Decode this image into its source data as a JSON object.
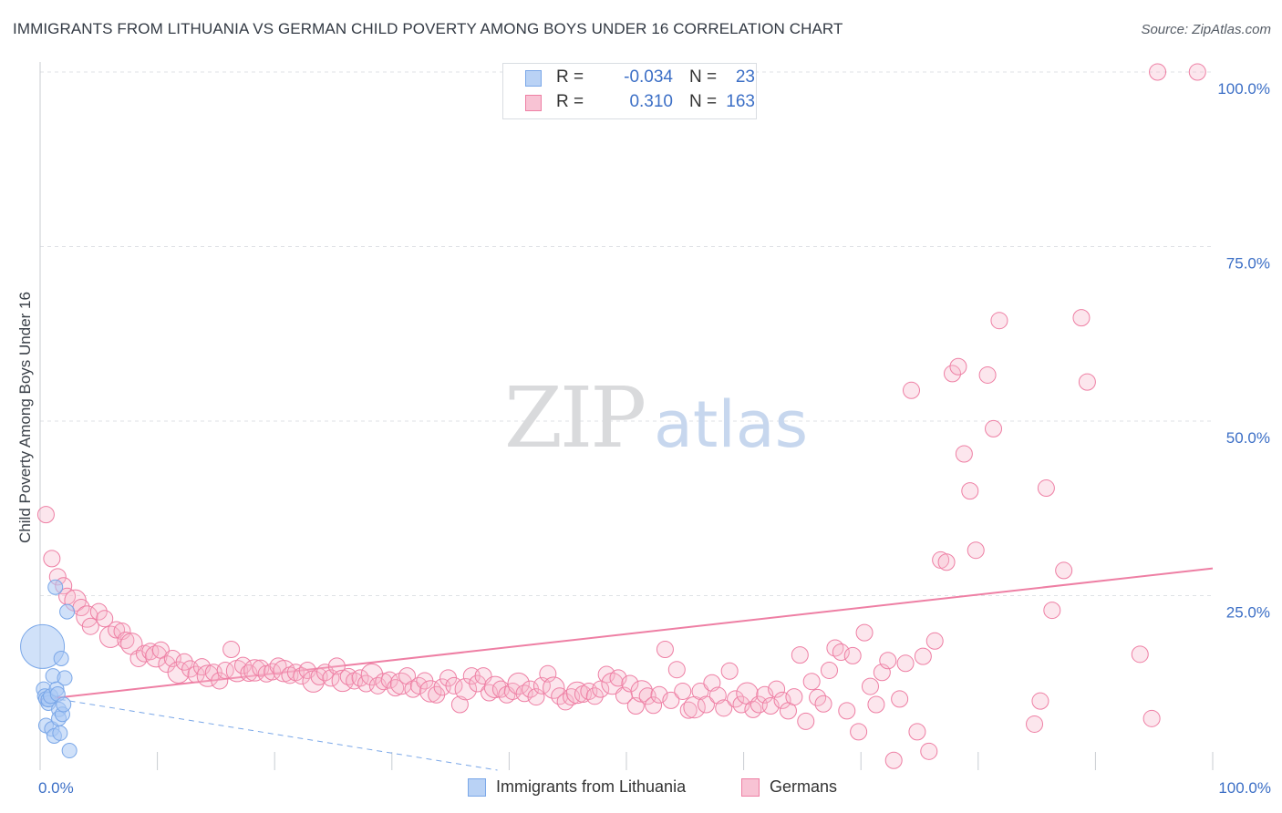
{
  "title": "IMMIGRANTS FROM LITHUANIA VS GERMAN CHILD POVERTY AMONG BOYS UNDER 16 CORRELATION CHART",
  "source": "Source: ZipAtlas.com",
  "watermark": {
    "zip": "ZIP",
    "atlas": "atlas"
  },
  "legend": {
    "r_label": "R =",
    "n_label": "N =",
    "rows": [
      {
        "r": "-0.034",
        "n": "23"
      },
      {
        "r": "0.310",
        "n": "163"
      }
    ]
  },
  "chart_data": {
    "type": "scatter",
    "ylabel": "Child Poverty Among Boys Under 16",
    "xlabel": "",
    "xlim": [
      0,
      100
    ],
    "ylim": [
      0,
      100
    ],
    "x_tick_labels": [
      {
        "value": 0,
        "label": "0.0%"
      },
      {
        "value": 100,
        "label": "100.0%"
      }
    ],
    "y_tick_labels": [
      {
        "value": 25,
        "label": "25.0%"
      },
      {
        "value": 50,
        "label": "50.0%"
      },
      {
        "value": 75,
        "label": "75.0%"
      },
      {
        "value": 100,
        "label": "100.0%"
      }
    ],
    "grid": true,
    "legend_position": "top-center",
    "series": [
      {
        "name": "Immigrants from Lithuania",
        "color": "#7aa7e8",
        "fill": "#a9c8f4",
        "r": -0.034,
        "n": 23,
        "trend": {
          "x": [
            0,
            39
          ],
          "y": [
            10.6,
            0
          ],
          "style": "dashed"
        },
        "points": [
          [
            0.2,
            17.7,
            3
          ],
          [
            0.3,
            11.6,
            1
          ],
          [
            0.4,
            10.6,
            1
          ],
          [
            0.5,
            10.2,
            1
          ],
          [
            0.5,
            6.4,
            1
          ],
          [
            0.7,
            9.6,
            1
          ],
          [
            0.7,
            10.1,
            1
          ],
          [
            0.9,
            10.6,
            1
          ],
          [
            1.0,
            5.9,
            1
          ],
          [
            1.1,
            13.5,
            1
          ],
          [
            1.2,
            4.9,
            1
          ],
          [
            1.3,
            26.2,
            1
          ],
          [
            1.4,
            11.6,
            1
          ],
          [
            1.5,
            10.9,
            1
          ],
          [
            1.6,
            8.7,
            1
          ],
          [
            1.6,
            7.4,
            1
          ],
          [
            1.7,
            5.3,
            1
          ],
          [
            1.8,
            16.0,
            1
          ],
          [
            1.9,
            8.0,
            1
          ],
          [
            2.0,
            9.4,
            1
          ],
          [
            2.1,
            13.2,
            1
          ],
          [
            2.3,
            22.7,
            1
          ],
          [
            2.5,
            2.8,
            1
          ]
        ]
      },
      {
        "name": "Germans",
        "color": "#ee7fa4",
        "fill": "#f6b6ca",
        "r": 0.31,
        "n": 163,
        "trend": {
          "x": [
            0,
            100
          ],
          "y": [
            10.1,
            28.9
          ],
          "style": "solid"
        },
        "points": [
          [
            0.5,
            36.6,
            1
          ],
          [
            1.0,
            30.3,
            1
          ],
          [
            1.5,
            27.7,
            1
          ],
          [
            2.0,
            26.4,
            1
          ],
          [
            2.3,
            24.9,
            1
          ],
          [
            3.0,
            24.3,
            1.3
          ],
          [
            3.5,
            23.3,
            1
          ],
          [
            4.0,
            22.0,
            1.3
          ],
          [
            4.3,
            20.6,
            1
          ],
          [
            5.0,
            22.7,
            1
          ],
          [
            5.5,
            21.7,
            1
          ],
          [
            6.0,
            19.1,
            1.3
          ],
          [
            6.5,
            20.1,
            1
          ],
          [
            7.0,
            19.9,
            1
          ],
          [
            7.3,
            18.6,
            1
          ],
          [
            7.8,
            18.1,
            1.3
          ],
          [
            8.4,
            16.0,
            1
          ],
          [
            8.9,
            16.7,
            1
          ],
          [
            9.4,
            17.0,
            1
          ],
          [
            9.9,
            16.3,
            1.3
          ],
          [
            10.3,
            17.2,
            1
          ],
          [
            10.8,
            15.2,
            1
          ],
          [
            11.3,
            16.0,
            1
          ],
          [
            11.8,
            14.0,
            1.3
          ],
          [
            12.3,
            15.5,
            1
          ],
          [
            12.8,
            14.5,
            1
          ],
          [
            13.3,
            13.7,
            1
          ],
          [
            13.8,
            14.8,
            1
          ],
          [
            14.3,
            13.5,
            1.3
          ],
          [
            14.8,
            14.0,
            1
          ],
          [
            15.3,
            12.8,
            1
          ],
          [
            15.8,
            14.3,
            1
          ],
          [
            16.3,
            17.3,
            1
          ],
          [
            16.8,
            14.2,
            1.3
          ],
          [
            17.3,
            15.0,
            1
          ],
          [
            17.8,
            13.9,
            1
          ],
          [
            18.3,
            14.3,
            1.3
          ],
          [
            18.8,
            14.6,
            1
          ],
          [
            19.3,
            13.8,
            1
          ],
          [
            19.8,
            14.1,
            1
          ],
          [
            20.3,
            14.9,
            1
          ],
          [
            20.8,
            14.2,
            1.3
          ],
          [
            21.3,
            13.6,
            1
          ],
          [
            21.8,
            14.0,
            1
          ],
          [
            22.3,
            13.5,
            1
          ],
          [
            22.8,
            14.3,
            1
          ],
          [
            23.3,
            12.7,
            1.3
          ],
          [
            23.8,
            13.4,
            1
          ],
          [
            24.3,
            14.0,
            1
          ],
          [
            24.8,
            13.2,
            1
          ],
          [
            25.3,
            14.9,
            1
          ],
          [
            25.8,
            12.8,
            1.3
          ],
          [
            26.3,
            13.4,
            1
          ],
          [
            26.8,
            12.8,
            1
          ],
          [
            27.3,
            13.2,
            1
          ],
          [
            27.8,
            12.4,
            1
          ],
          [
            28.3,
            13.7,
            1.3
          ],
          [
            28.8,
            12.1,
            1
          ],
          [
            29.3,
            12.7,
            1
          ],
          [
            29.8,
            12.9,
            1
          ],
          [
            30.3,
            11.8,
            1
          ],
          [
            30.8,
            12.4,
            1.3
          ],
          [
            31.3,
            13.5,
            1
          ],
          [
            31.8,
            11.6,
            1
          ],
          [
            32.3,
            12.1,
            1
          ],
          [
            32.8,
            12.8,
            1
          ],
          [
            33.3,
            11.3,
            1.3
          ],
          [
            33.8,
            10.8,
            1
          ],
          [
            34.3,
            11.9,
            1
          ],
          [
            34.8,
            13.2,
            1
          ],
          [
            35.3,
            12.1,
            1
          ],
          [
            35.8,
            9.4,
            1
          ],
          [
            36.3,
            11.6,
            1.3
          ],
          [
            36.8,
            13.5,
            1
          ],
          [
            37.3,
            12.4,
            1
          ],
          [
            37.8,
            13.5,
            1
          ],
          [
            38.3,
            11.1,
            1
          ],
          [
            38.8,
            11.9,
            1.3
          ],
          [
            39.3,
            11.6,
            1
          ],
          [
            39.8,
            10.8,
            1
          ],
          [
            40.3,
            11.3,
            1
          ],
          [
            40.8,
            12.4,
            1.3
          ],
          [
            41.3,
            11.0,
            1
          ],
          [
            41.8,
            11.6,
            1
          ],
          [
            42.3,
            10.5,
            1
          ],
          [
            42.8,
            12.1,
            1
          ],
          [
            43.3,
            13.8,
            1
          ],
          [
            43.8,
            11.8,
            1.3
          ],
          [
            44.3,
            10.6,
            1
          ],
          [
            44.8,
            9.8,
            1
          ],
          [
            45.3,
            10.5,
            1
          ],
          [
            45.8,
            11.1,
            1.3
          ],
          [
            46.3,
            10.9,
            1
          ],
          [
            46.8,
            11.3,
            1
          ],
          [
            47.3,
            10.6,
            1
          ],
          [
            47.8,
            11.6,
            1
          ],
          [
            48.3,
            13.7,
            1
          ],
          [
            48.8,
            12.4,
            1.3
          ],
          [
            49.3,
            13.2,
            1
          ],
          [
            49.8,
            10.7,
            1
          ],
          [
            50.3,
            12.4,
            1
          ],
          [
            50.8,
            9.2,
            1
          ],
          [
            51.3,
            11.3,
            1.3
          ],
          [
            51.8,
            10.6,
            1
          ],
          [
            52.3,
            9.3,
            1
          ],
          [
            52.8,
            10.8,
            1
          ],
          [
            53.3,
            17.3,
            1
          ],
          [
            53.8,
            10.0,
            1
          ],
          [
            54.3,
            14.4,
            1
          ],
          [
            54.8,
            11.3,
            1
          ],
          [
            55.3,
            8.6,
            1
          ],
          [
            55.8,
            9.0,
            1.3
          ],
          [
            56.3,
            11.3,
            1
          ],
          [
            56.8,
            9.4,
            1
          ],
          [
            57.3,
            12.5,
            1
          ],
          [
            57.8,
            10.7,
            1
          ],
          [
            58.3,
            8.9,
            1
          ],
          [
            58.8,
            14.2,
            1
          ],
          [
            59.3,
            10.2,
            1
          ],
          [
            59.8,
            9.4,
            1
          ],
          [
            60.3,
            11.0,
            1.3
          ],
          [
            60.8,
            8.7,
            1
          ],
          [
            61.3,
            9.4,
            1
          ],
          [
            61.8,
            10.8,
            1
          ],
          [
            62.3,
            9.2,
            1
          ],
          [
            62.8,
            11.6,
            1
          ],
          [
            63.3,
            10.0,
            1
          ],
          [
            63.8,
            8.5,
            1
          ],
          [
            64.3,
            10.5,
            1
          ],
          [
            64.8,
            16.5,
            1
          ],
          [
            65.3,
            7.0,
            1
          ],
          [
            65.8,
            12.7,
            1
          ],
          [
            66.3,
            10.4,
            1
          ],
          [
            66.8,
            9.5,
            1
          ],
          [
            67.3,
            14.3,
            1
          ],
          [
            67.8,
            17.5,
            1
          ],
          [
            68.3,
            16.9,
            1
          ],
          [
            68.8,
            8.5,
            1
          ],
          [
            69.3,
            16.4,
            1
          ],
          [
            69.8,
            5.5,
            1
          ],
          [
            70.3,
            19.7,
            1
          ],
          [
            70.8,
            12.0,
            1
          ],
          [
            71.3,
            9.4,
            1
          ],
          [
            71.8,
            14.0,
            1
          ],
          [
            72.3,
            15.7,
            1
          ],
          [
            72.8,
            1.4,
            1
          ],
          [
            73.3,
            10.2,
            1
          ],
          [
            73.8,
            15.3,
            1
          ],
          [
            74.3,
            54.4,
            1
          ],
          [
            74.8,
            5.5,
            1
          ],
          [
            75.3,
            16.3,
            1
          ],
          [
            75.8,
            2.7,
            1
          ],
          [
            76.3,
            18.5,
            1
          ],
          [
            76.8,
            30.1,
            1
          ],
          [
            77.3,
            29.8,
            1
          ],
          [
            77.8,
            56.8,
            1
          ],
          [
            78.3,
            57.8,
            1
          ],
          [
            78.8,
            45.3,
            1
          ],
          [
            79.3,
            40.0,
            1
          ],
          [
            79.8,
            31.5,
            1
          ],
          [
            80.8,
            56.6,
            1
          ],
          [
            81.3,
            48.9,
            1
          ],
          [
            81.8,
            64.4,
            1
          ],
          [
            84.8,
            6.6,
            1
          ],
          [
            85.3,
            9.9,
            1
          ],
          [
            85.8,
            40.4,
            1
          ],
          [
            86.3,
            22.9,
            1
          ],
          [
            87.3,
            28.6,
            1
          ],
          [
            88.8,
            64.8,
            1
          ],
          [
            89.3,
            55.6,
            1
          ],
          [
            93.8,
            16.6,
            1
          ],
          [
            94.8,
            7.4,
            1
          ],
          [
            95.3,
            100.0,
            1
          ],
          [
            98.7,
            100.0,
            1
          ]
        ]
      }
    ]
  }
}
